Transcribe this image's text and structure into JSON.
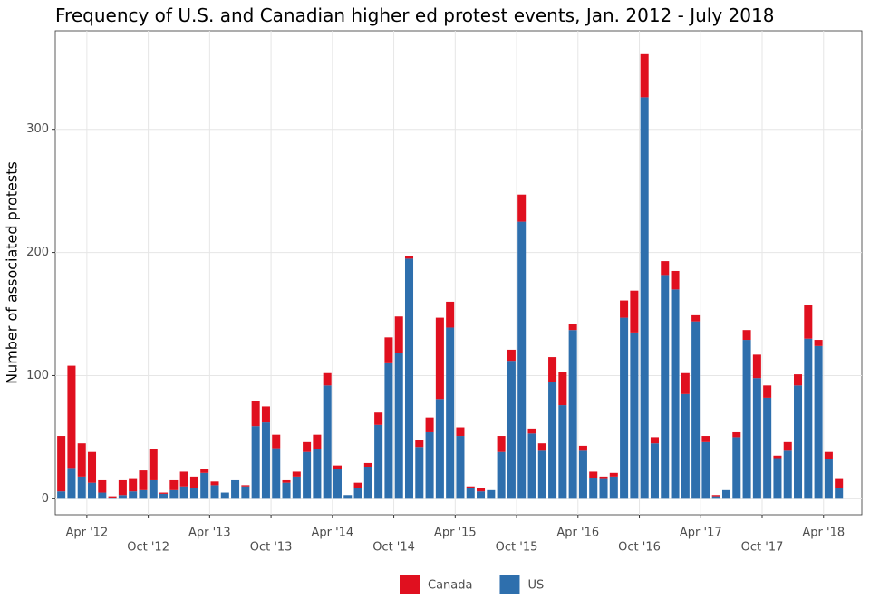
{
  "chart_data": {
    "type": "stacked_bar",
    "title": "Frequency of U.S. and Canadian higher ed protest events, Jan. 2012 - July 2018",
    "y_label": "Number of associated protests",
    "categories": [
      null,
      null,
      null,
      "Apr '12",
      null,
      null,
      null,
      null,
      null,
      "Oct '12",
      null,
      null,
      null,
      null,
      null,
      "Apr '13",
      null,
      null,
      null,
      null,
      null,
      "Oct '13",
      null,
      null,
      null,
      null,
      null,
      "Apr '14",
      null,
      null,
      null,
      null,
      null,
      "Oct '14",
      null,
      null,
      null,
      null,
      null,
      "Apr '15",
      null,
      null,
      null,
      null,
      null,
      "Oct '15",
      null,
      null,
      null,
      null,
      null,
      "Apr '16",
      null,
      null,
      null,
      null,
      null,
      "Oct '16",
      null,
      null,
      null,
      null,
      null,
      "Apr '17",
      null,
      null,
      null,
      null,
      null,
      "Oct '17",
      null,
      null,
      null,
      null,
      null,
      "Apr '18",
      null
    ],
    "series": [
      {
        "name": "Canada",
        "color": "#e0101f",
        "values": [
          45,
          83,
          27,
          25,
          10,
          1,
          12,
          10,
          16,
          25,
          1,
          8,
          12,
          9,
          3,
          3,
          0,
          0,
          1,
          20,
          13,
          11,
          2,
          4,
          8,
          12,
          10,
          3,
          0,
          4,
          3,
          10,
          21,
          30,
          2,
          6,
          12,
          66,
          21,
          7,
          1,
          3,
          0,
          13,
          9,
          22,
          4,
          6,
          20,
          27,
          5,
          4,
          5,
          2,
          3,
          14,
          34,
          35,
          5,
          12,
          15,
          17,
          5,
          5,
          1,
          0,
          4,
          8,
          19,
          10,
          2,
          7,
          9,
          27,
          5,
          6,
          7
        ]
      },
      {
        "name": "US",
        "color": "#2e6fad",
        "values": [
          6,
          25,
          18,
          13,
          5,
          1,
          3,
          6,
          7,
          15,
          4,
          7,
          10,
          9,
          21,
          11,
          5,
          15,
          10,
          59,
          62,
          41,
          13,
          18,
          38,
          40,
          92,
          24,
          3,
          9,
          26,
          60,
          110,
          118,
          195,
          42,
          54,
          81,
          139,
          51,
          9,
          6,
          7,
          38,
          112,
          225,
          53,
          39,
          95,
          76,
          137,
          39,
          17,
          16,
          18,
          147,
          135,
          326,
          45,
          181,
          170,
          85,
          144,
          46,
          2,
          7,
          50,
          129,
          98,
          82,
          33,
          39,
          92,
          130,
          124,
          32,
          9
        ]
      }
    ],
    "ylim": [
      -13,
      380
    ],
    "yticks": [
      0,
      100,
      200,
      300
    ],
    "grid": true,
    "legend": "bottom"
  }
}
